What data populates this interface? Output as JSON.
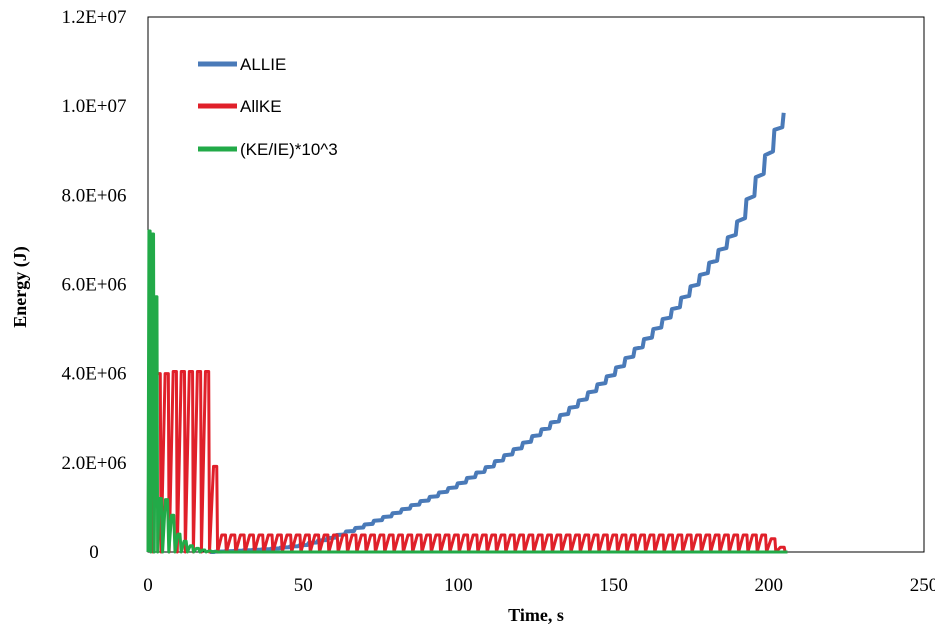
{
  "chart_data": {
    "type": "line",
    "title": "",
    "xlabel": "Time, s",
    "ylabel": "Energy (J)",
    "xlim": [
      0,
      250
    ],
    "ylim": [
      0,
      12000000
    ],
    "x_ticks": [
      "0",
      "50",
      "100",
      "150",
      "200",
      "250"
    ],
    "y_ticks": [
      "0",
      "2.0E+06",
      "4.0E+06",
      "6.0E+06",
      "8.0E+06",
      "1.0E+07",
      "1.2E+07"
    ],
    "grid": false,
    "legend_position": "top-left",
    "series": [
      {
        "name": "ALLIE",
        "color": "#4a7ab8",
        "style": "sawtooth-growth",
        "x": [
          0,
          20,
          30,
          40,
          50,
          60,
          70,
          80,
          90,
          100,
          110,
          120,
          130,
          140,
          150,
          160,
          170,
          180,
          190,
          200,
          205
        ],
        "y": [
          0,
          0,
          30000,
          70000,
          150000,
          330000,
          590000,
          870000,
          1170000,
          1500000,
          1900000,
          2350000,
          2850000,
          3400000,
          4000000,
          4700000,
          5450000,
          6300000,
          7250000,
          8900000,
          9850000
        ]
      },
      {
        "name": "AllKE",
        "color": "#e0202a",
        "style": "square-pulses",
        "x": [
          0,
          1,
          2,
          3,
          4,
          5,
          6,
          8,
          10,
          12,
          14,
          16,
          18,
          20,
          21,
          22,
          23,
          50,
          100,
          150,
          200,
          206
        ],
        "y": [
          0,
          4000000,
          4000000,
          4000000,
          4000000,
          4000000,
          4000000,
          4050000,
          4050000,
          4050000,
          4050000,
          4050000,
          4050000,
          4050000,
          4050000,
          380000,
          380000,
          380000,
          380000,
          380000,
          380000,
          0
        ]
      },
      {
        "name": "(KE/IE)*10^3",
        "color": "#22aa48",
        "style": "decaying-spikes",
        "x": [
          0.5,
          1.5,
          2.5,
          3.5,
          5,
          7,
          9,
          11,
          13,
          15,
          17,
          19,
          21,
          23,
          206
        ],
        "y": [
          7200000,
          7150000,
          7000000,
          1200000,
          1200000,
          1150000,
          500000,
          300000,
          180000,
          100000,
          60000,
          30000,
          15000,
          0,
          0
        ]
      }
    ]
  }
}
